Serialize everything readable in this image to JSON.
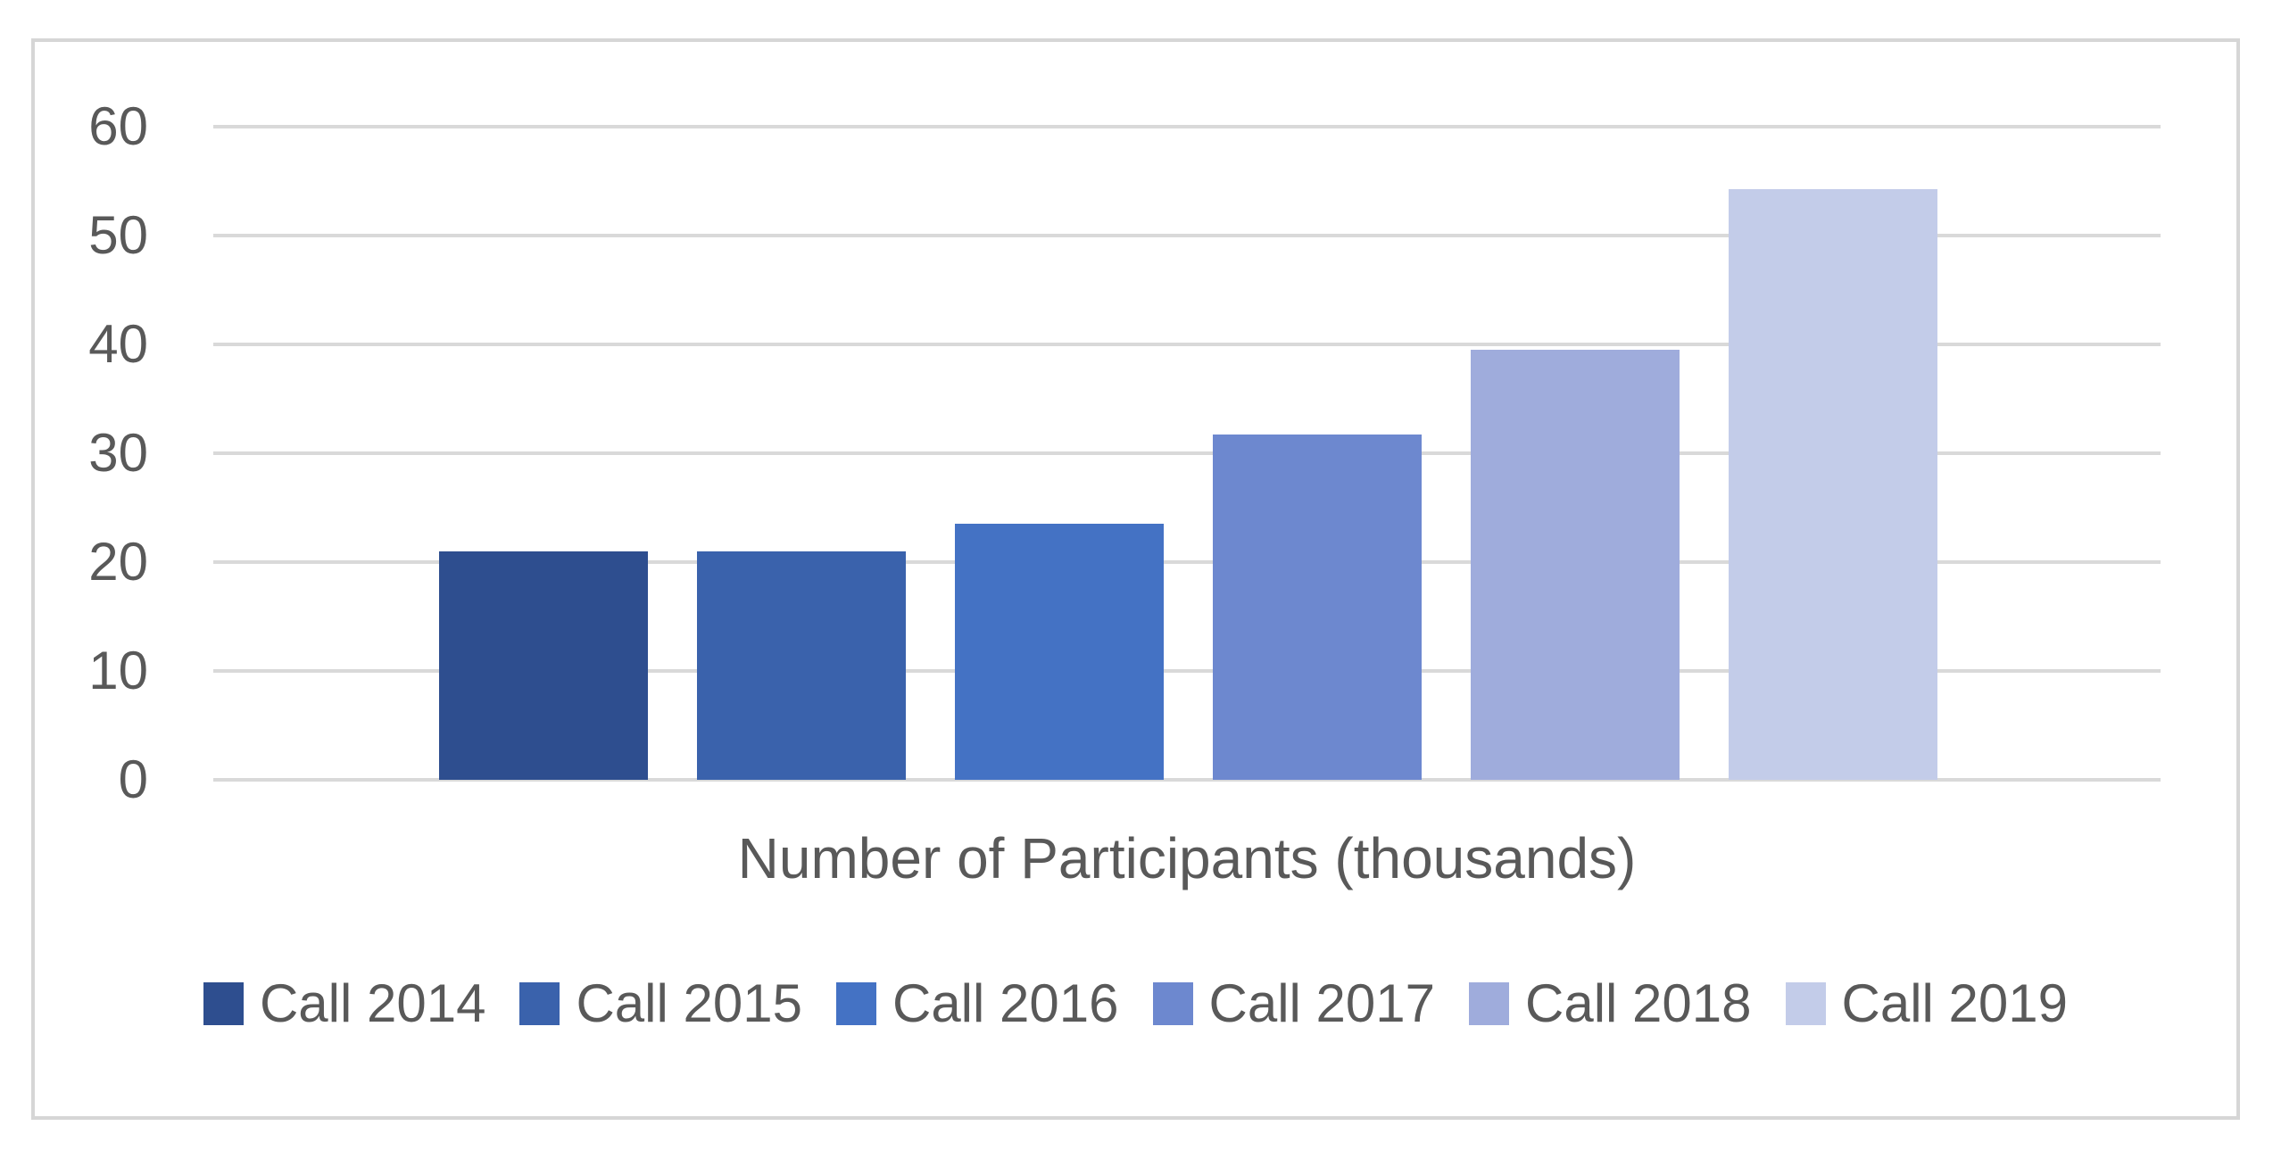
{
  "chart_data": {
    "type": "bar",
    "category_label": "Number of Participants (thousands)",
    "series": [
      {
        "name": "Call 2014",
        "value": 21,
        "color": "#2E4E8F"
      },
      {
        "name": "Call 2015",
        "value": 21,
        "color": "#3A62AC"
      },
      {
        "name": "Call 2016",
        "value": 23.5,
        "color": "#4472C4"
      },
      {
        "name": "Call 2017",
        "value": 31.7,
        "color": "#6D88CF"
      },
      {
        "name": "Call 2018",
        "value": 39.5,
        "color": "#9FACDC"
      },
      {
        "name": "Call 2019",
        "value": 54.3,
        "color": "#C3CCE9"
      }
    ],
    "y_axis": {
      "min": 0,
      "max": 60,
      "step": 10,
      "ticks": [
        0,
        10,
        20,
        30,
        40,
        50,
        60
      ]
    },
    "grid": true,
    "legend_position": "bottom",
    "colors": {
      "background": "#FFFFFF",
      "grid": "#D9D9D9",
      "frame_border": "#D6D6D6",
      "text": "#595959"
    }
  }
}
